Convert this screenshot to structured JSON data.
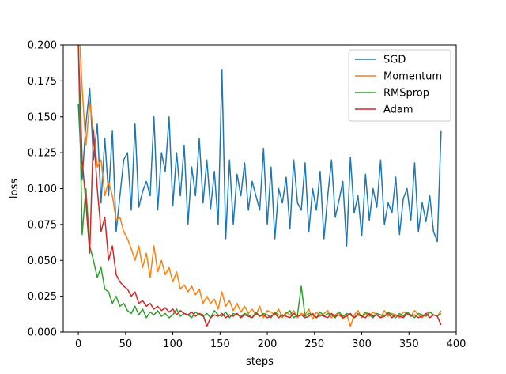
{
  "chart_data": {
    "type": "line",
    "title": "",
    "xlabel": "steps",
    "ylabel": "loss",
    "xlim": [
      -16,
      400
    ],
    "ylim": [
      0,
      0.2
    ],
    "x_ticks": [
      0,
      50,
      100,
      150,
      200,
      250,
      300,
      350,
      400
    ],
    "y_ticks": [
      0.0,
      0.025,
      0.05,
      0.075,
      0.1,
      0.125,
      0.15,
      0.175,
      0.2
    ],
    "x_tick_labels": [
      "0",
      "50",
      "100",
      "150",
      "200",
      "250",
      "300",
      "350",
      "400"
    ],
    "y_tick_labels": [
      "0.000",
      "0.025",
      "0.050",
      "0.075",
      "0.100",
      "0.125",
      "0.150",
      "0.175",
      "0.200"
    ],
    "grid": false,
    "legend_position": "top-right",
    "series": [
      {
        "name": "SGD",
        "color": "#1f77b4",
        "x": [
          0,
          4,
          8,
          12,
          16,
          20,
          24,
          28,
          32,
          36,
          40,
          44,
          48,
          52,
          56,
          60,
          64,
          68,
          72,
          76,
          80,
          84,
          88,
          92,
          96,
          100,
          104,
          108,
          112,
          116,
          120,
          124,
          128,
          132,
          136,
          140,
          144,
          148,
          152,
          156,
          160,
          164,
          168,
          172,
          176,
          180,
          184,
          188,
          192,
          196,
          200,
          204,
          208,
          212,
          216,
          220,
          224,
          228,
          232,
          236,
          240,
          244,
          248,
          252,
          256,
          260,
          264,
          268,
          272,
          276,
          280,
          284,
          288,
          292,
          296,
          300,
          304,
          308,
          312,
          316,
          320,
          324,
          328,
          332,
          336,
          340,
          344,
          348,
          352,
          356,
          360,
          364,
          368,
          372,
          376,
          380,
          384
        ],
        "y": [
          0.159,
          0.106,
          0.145,
          0.17,
          0.12,
          0.145,
          0.09,
          0.135,
          0.095,
          0.14,
          0.07,
          0.095,
          0.12,
          0.125,
          0.085,
          0.145,
          0.087,
          0.098,
          0.105,
          0.095,
          0.15,
          0.085,
          0.125,
          0.112,
          0.15,
          0.088,
          0.125,
          0.095,
          0.13,
          0.075,
          0.115,
          0.095,
          0.135,
          0.09,
          0.12,
          0.086,
          0.112,
          0.075,
          0.183,
          0.065,
          0.12,
          0.075,
          0.11,
          0.095,
          0.118,
          0.085,
          0.105,
          0.095,
          0.085,
          0.128,
          0.075,
          0.115,
          0.065,
          0.1,
          0.09,
          0.108,
          0.072,
          0.12,
          0.09,
          0.085,
          0.118,
          0.07,
          0.1,
          0.085,
          0.112,
          0.065,
          0.095,
          0.12,
          0.08,
          0.092,
          0.105,
          0.06,
          0.122,
          0.083,
          0.095,
          0.067,
          0.11,
          0.078,
          0.1,
          0.087,
          0.12,
          0.075,
          0.09,
          0.083,
          0.108,
          0.068,
          0.093,
          0.1,
          0.078,
          0.118,
          0.07,
          0.09,
          0.077,
          0.095,
          0.07,
          0.063,
          0.14
        ]
      },
      {
        "name": "Momentum",
        "color": "#ff7f0e",
        "x": [
          0,
          4,
          8,
          12,
          16,
          20,
          24,
          28,
          32,
          36,
          40,
          44,
          48,
          52,
          56,
          60,
          64,
          68,
          72,
          76,
          80,
          84,
          88,
          92,
          96,
          100,
          104,
          108,
          112,
          116,
          120,
          124,
          128,
          132,
          136,
          140,
          144,
          148,
          152,
          156,
          160,
          164,
          168,
          172,
          176,
          180,
          184,
          188,
          192,
          196,
          200,
          204,
          208,
          212,
          216,
          220,
          224,
          228,
          232,
          236,
          240,
          244,
          248,
          252,
          256,
          260,
          264,
          268,
          272,
          276,
          280,
          284,
          288,
          292,
          296,
          300,
          304,
          308,
          312,
          316,
          320,
          324,
          328,
          332,
          336,
          340,
          344,
          348,
          352,
          356,
          360,
          364,
          368,
          372,
          376,
          380,
          384
        ],
        "y": [
          0.22,
          0.17,
          0.13,
          0.16,
          0.14,
          0.115,
          0.12,
          0.095,
          0.105,
          0.095,
          0.078,
          0.08,
          0.07,
          0.065,
          0.058,
          0.05,
          0.06,
          0.045,
          0.055,
          0.038,
          0.06,
          0.042,
          0.05,
          0.04,
          0.045,
          0.035,
          0.042,
          0.03,
          0.033,
          0.028,
          0.032,
          0.026,
          0.03,
          0.02,
          0.025,
          0.02,
          0.023,
          0.016,
          0.028,
          0.018,
          0.022,
          0.015,
          0.02,
          0.014,
          0.018,
          0.013,
          0.016,
          0.012,
          0.018,
          0.01,
          0.015,
          0.014,
          0.012,
          0.016,
          0.01,
          0.014,
          0.012,
          0.015,
          0.01,
          0.013,
          0.012,
          0.016,
          0.009,
          0.014,
          0.011,
          0.013,
          0.015,
          0.01,
          0.012,
          0.014,
          0.009,
          0.013,
          0.004,
          0.012,
          0.015,
          0.01,
          0.013,
          0.011,
          0.014,
          0.012,
          0.01,
          0.015,
          0.011,
          0.013,
          0.012,
          0.01,
          0.014,
          0.013,
          0.011,
          0.015,
          0.012,
          0.01,
          0.013,
          0.014,
          0.012,
          0.011,
          0.015
        ]
      },
      {
        "name": "RMSprop",
        "color": "#2ca02c",
        "x": [
          0,
          4,
          8,
          12,
          16,
          20,
          24,
          28,
          32,
          36,
          40,
          44,
          48,
          52,
          56,
          60,
          64,
          68,
          72,
          76,
          80,
          84,
          88,
          92,
          96,
          100,
          104,
          108,
          112,
          116,
          120,
          124,
          128,
          132,
          136,
          140,
          144,
          148,
          152,
          156,
          160,
          164,
          168,
          172,
          176,
          180,
          184,
          188,
          192,
          196,
          200,
          204,
          208,
          212,
          216,
          220,
          224,
          228,
          232,
          236,
          240,
          244,
          248,
          252,
          256,
          260,
          264,
          268,
          272,
          276,
          280,
          284,
          288,
          292,
          296,
          300,
          304,
          308,
          312,
          316,
          320,
          324,
          328,
          332,
          336,
          340,
          344,
          348,
          352,
          356,
          360,
          364,
          368,
          372,
          376,
          380,
          384
        ],
        "y": [
          0.2,
          0.068,
          0.1,
          0.06,
          0.05,
          0.038,
          0.045,
          0.03,
          0.028,
          0.02,
          0.025,
          0.018,
          0.02,
          0.015,
          0.013,
          0.018,
          0.012,
          0.016,
          0.01,
          0.014,
          0.012,
          0.015,
          0.011,
          0.013,
          0.01,
          0.012,
          0.016,
          0.011,
          0.013,
          0.012,
          0.01,
          0.014,
          0.012,
          0.011,
          0.013,
          0.01,
          0.015,
          0.012,
          0.011,
          0.014,
          0.01,
          0.013,
          0.012,
          0.011,
          0.013,
          0.012,
          0.01,
          0.014,
          0.011,
          0.013,
          0.012,
          0.01,
          0.014,
          0.012,
          0.011,
          0.013,
          0.015,
          0.01,
          0.012,
          0.032,
          0.011,
          0.013,
          0.012,
          0.01,
          0.014,
          0.011,
          0.013,
          0.012,
          0.01,
          0.014,
          0.011,
          0.013,
          0.012,
          0.01,
          0.013,
          0.011,
          0.014,
          0.012,
          0.01,
          0.013,
          0.012,
          0.011,
          0.014,
          0.012,
          0.01,
          0.013,
          0.011,
          0.014,
          0.012,
          0.01,
          0.013,
          0.012,
          0.011,
          0.014,
          0.012,
          0.011,
          0.013
        ]
      },
      {
        "name": "Adam",
        "color": "#d62728",
        "x": [
          0,
          4,
          8,
          12,
          16,
          20,
          24,
          28,
          32,
          36,
          40,
          44,
          48,
          52,
          56,
          60,
          64,
          68,
          72,
          76,
          80,
          84,
          88,
          92,
          96,
          100,
          104,
          108,
          112,
          116,
          120,
          124,
          128,
          132,
          136,
          140,
          144,
          148,
          152,
          156,
          160,
          164,
          168,
          172,
          176,
          180,
          184,
          188,
          192,
          196,
          200,
          204,
          208,
          212,
          216,
          220,
          224,
          228,
          232,
          236,
          240,
          244,
          248,
          252,
          256,
          260,
          264,
          268,
          272,
          276,
          280,
          284,
          288,
          292,
          296,
          300,
          304,
          308,
          312,
          316,
          320,
          324,
          328,
          332,
          336,
          340,
          344,
          348,
          352,
          356,
          360,
          364,
          368,
          372,
          376,
          380,
          384
        ],
        "y": [
          0.2,
          0.12,
          0.09,
          0.055,
          0.14,
          0.1,
          0.07,
          0.08,
          0.05,
          0.06,
          0.04,
          0.035,
          0.032,
          0.03,
          0.025,
          0.028,
          0.02,
          0.022,
          0.018,
          0.02,
          0.016,
          0.018,
          0.015,
          0.017,
          0.014,
          0.016,
          0.012,
          0.015,
          0.013,
          0.012,
          0.014,
          0.011,
          0.013,
          0.012,
          0.004,
          0.01,
          0.012,
          0.011,
          0.013,
          0.01,
          0.012,
          0.011,
          0.013,
          0.01,
          0.012,
          0.011,
          0.01,
          0.013,
          0.011,
          0.012,
          0.01,
          0.011,
          0.013,
          0.01,
          0.012,
          0.011,
          0.01,
          0.013,
          0.011,
          0.012,
          0.01,
          0.011,
          0.013,
          0.01,
          0.012,
          0.011,
          0.01,
          0.013,
          0.011,
          0.012,
          0.01,
          0.011,
          0.013,
          0.01,
          0.012,
          0.011,
          0.01,
          0.013,
          0.011,
          0.012,
          0.01,
          0.011,
          0.013,
          0.01,
          0.012,
          0.011,
          0.01,
          0.013,
          0.011,
          0.012,
          0.01,
          0.011,
          0.013,
          0.01,
          0.012,
          0.011,
          0.005
        ]
      }
    ]
  }
}
